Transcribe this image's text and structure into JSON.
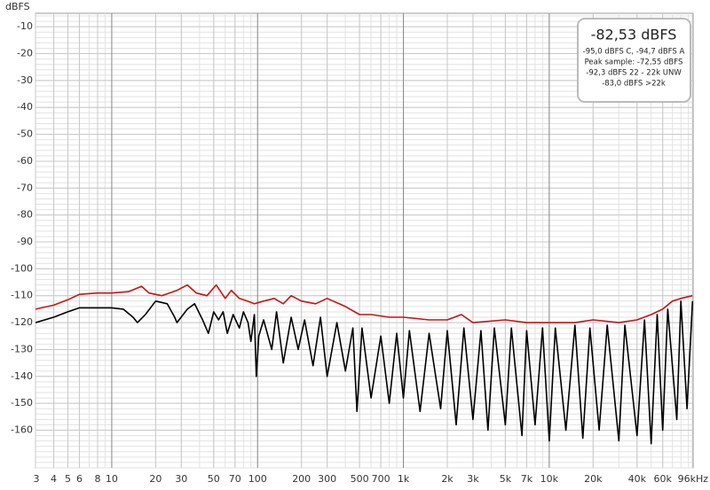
{
  "chart_data": {
    "type": "line",
    "y_label": "dBFS",
    "xscale": "log",
    "grid": true,
    "xlim": [
      3,
      97000
    ],
    "ylim": [
      -174,
      -5
    ],
    "xticks": [
      3,
      4,
      5,
      6,
      8,
      10,
      20,
      30,
      50,
      70,
      100,
      200,
      300,
      500,
      700,
      {
        "value": 1000,
        "label": "1k"
      },
      {
        "value": 2000,
        "label": "2k"
      },
      {
        "value": 3000,
        "label": "3k"
      },
      {
        "value": 5000,
        "label": "5k"
      },
      {
        "value": 7000,
        "label": "7k"
      },
      {
        "value": 10000,
        "label": "10k"
      },
      {
        "value": 20000,
        "label": "20k"
      },
      {
        "value": 40000,
        "label": "40k"
      },
      {
        "value": 60000,
        "label": "60k"
      },
      {
        "value": 96000,
        "label": "96kHz"
      }
    ],
    "yticks": [
      -10,
      -20,
      -30,
      -40,
      -50,
      -60,
      -70,
      -80,
      -90,
      -100,
      -110,
      -120,
      -130,
      -140,
      -150,
      -160
    ],
    "annotations": [
      "-82,53 dBFS",
      "-95,0 dBFS C, -94,7 dBFS A",
      "Peak sample: -72,55 dBFS",
      "-92,3 dBFS 22 - 22k UNW",
      "-83,0 dBFS >22k"
    ],
    "series": [
      {
        "color": "#cc1111",
        "x": [
          3,
          4,
          5,
          6,
          8,
          10,
          13,
          16,
          18,
          22,
          28,
          33,
          38,
          45,
          52,
          60,
          66,
          75,
          85,
          95,
          110,
          130,
          150,
          170,
          200,
          250,
          300,
          400,
          500,
          600,
          800,
          1000,
          1500,
          2000,
          2500,
          3000,
          5000,
          7000,
          10000,
          15000,
          20000,
          30000,
          40000,
          50000,
          60000,
          70000,
          80000,
          96000
        ],
        "values": [
          -115,
          -113.5,
          -111.5,
          -109.5,
          -109,
          -109,
          -108.5,
          -106.5,
          -109,
          -110,
          -108,
          -106,
          -109,
          -110,
          -106,
          -111,
          -108,
          -111,
          -112,
          -113,
          -112,
          -111,
          -113,
          -110,
          -112,
          -113,
          -111,
          -114,
          -117,
          -117,
          -118,
          -118,
          -119,
          -119,
          -117,
          -120,
          -119,
          -120,
          -120,
          -120,
          -119,
          -120,
          -119,
          -117,
          -115,
          -112,
          -111,
          -110
        ]
      },
      {
        "color": "#000000",
        "x": [
          3,
          4,
          5,
          6,
          8,
          10,
          12,
          14,
          15,
          17,
          20,
          24,
          27,
          28,
          33,
          37,
          42,
          46,
          50,
          54,
          58,
          62,
          68,
          75,
          80,
          86,
          90,
          95,
          98,
          102,
          110,
          125,
          135,
          150,
          170,
          190,
          210,
          240,
          270,
          300,
          350,
          400,
          450,
          480,
          520,
          600,
          700,
          800,
          900,
          1000,
          1100,
          1300,
          1500,
          1800,
          2000,
          2300,
          2600,
          3000,
          3400,
          3800,
          4200,
          5000,
          5500,
          6500,
          7000,
          8000,
          9000,
          10000,
          11000,
          13000,
          15000,
          17000,
          19000,
          22000,
          25000,
          30000,
          33000,
          40000,
          45000,
          50000,
          55000,
          60000,
          65000,
          75000,
          80000,
          88000,
          96000
        ],
        "values": [
          -120,
          -118,
          -116,
          -114.5,
          -114.5,
          -114.5,
          -115,
          -118,
          -120,
          -117,
          -112,
          -113,
          -118,
          -120,
          -115,
          -113,
          -119,
          -124,
          -116,
          -119,
          -116,
          -124,
          -117,
          -122,
          -116,
          -120,
          -127,
          -117,
          -140,
          -125,
          -119,
          -130,
          -116,
          -135,
          -118,
          -130,
          -119,
          -136,
          -118,
          -140,
          -120,
          -138,
          -122,
          -153,
          -122,
          -148,
          -125,
          -150,
          -124,
          -148,
          -123,
          -153,
          -124,
          -152,
          -123,
          -158,
          -122,
          -156,
          -123,
          -160,
          -122,
          -158,
          -122,
          -162,
          -123,
          -158,
          -122,
          -164,
          -122,
          -160,
          -121,
          -163,
          -122,
          -160,
          -121,
          -164,
          -121,
          -162,
          -119,
          -165,
          -117,
          -160,
          -115,
          -156,
          -112,
          -152,
          -112
        ]
      }
    ]
  }
}
